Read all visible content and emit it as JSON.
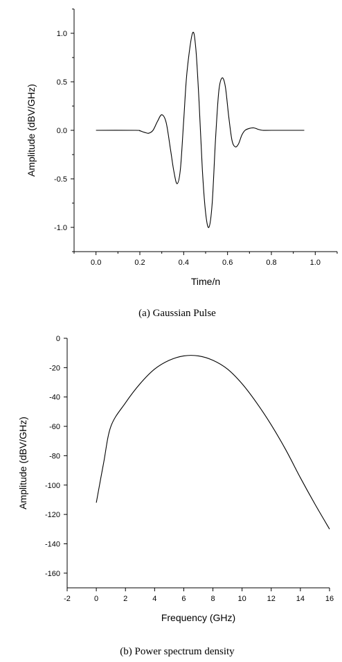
{
  "figures": [
    {
      "caption": "(a) Gaussian Pulse"
    },
    {
      "caption": "(b) Power spectrum density"
    }
  ],
  "chart_data": [
    {
      "type": "line",
      "xlabel": "Time/n",
      "ylabel": "Amplitude (dBV/GHz)",
      "xlim": [
        -0.1,
        1.1
      ],
      "ylim": [
        -1.25,
        1.25
      ],
      "xticks": [
        0.0,
        0.2,
        0.4,
        0.6,
        0.8,
        1.0
      ],
      "xtick_labels": [
        "0.0",
        "0.2",
        "0.4",
        "0.6",
        "0.8",
        "1.0"
      ],
      "yticks": [
        -1.0,
        -0.5,
        0.0,
        0.5,
        1.0
      ],
      "ytick_labels": [
        "-1.0",
        "-0.5",
        "0.0",
        "0.5",
        "1.0"
      ],
      "grid": false,
      "series": [
        {
          "x": [
            0.0,
            0.18,
            0.2,
            0.22,
            0.24,
            0.26,
            0.28,
            0.3,
            0.32,
            0.34,
            0.355,
            0.37,
            0.385,
            0.4,
            0.415,
            0.44,
            0.455,
            0.47,
            0.485,
            0.5,
            0.515,
            0.53,
            0.545,
            0.56,
            0.575,
            0.59,
            0.605,
            0.62,
            0.635,
            0.65,
            0.665,
            0.68,
            0.7,
            0.72,
            0.74,
            0.76,
            0.8,
            0.95
          ],
          "y": [
            0.0,
            0.0,
            -0.005,
            -0.02,
            -0.03,
            0.0,
            0.09,
            0.16,
            0.08,
            -0.2,
            -0.42,
            -0.55,
            -0.4,
            0.1,
            0.6,
            1.0,
            0.85,
            0.3,
            -0.4,
            -0.85,
            -1.0,
            -0.75,
            -0.1,
            0.4,
            0.54,
            0.45,
            0.15,
            -0.1,
            -0.17,
            -0.14,
            -0.05,
            0.0,
            0.02,
            0.025,
            0.01,
            0.0,
            0.0,
            0.0
          ]
        }
      ]
    },
    {
      "type": "line",
      "xlabel": "Frequency (GHz)",
      "ylabel": "Amplitude (dBV/GHz)",
      "xlim": [
        -2,
        16
      ],
      "ylim": [
        -170,
        0
      ],
      "xticks": [
        -2,
        0,
        2,
        4,
        6,
        8,
        10,
        12,
        14,
        16
      ],
      "xtick_labels": [
        "-2",
        "0",
        "2",
        "4",
        "6",
        "8",
        "10",
        "12",
        "14",
        "16"
      ],
      "yticks": [
        0,
        -20,
        -40,
        -60,
        -80,
        -100,
        -120,
        -140,
        -160
      ],
      "ytick_labels": [
        "0",
        "-20",
        "-40",
        "-60",
        "-80",
        "-100",
        "-120",
        "-140",
        "-160"
      ],
      "grid": false,
      "series": [
        {
          "x": [
            0,
            0.5,
            1,
            2,
            3,
            4,
            5,
            6,
            7,
            8,
            9,
            10,
            11,
            12,
            13,
            14,
            15,
            16
          ],
          "y": [
            -112,
            -85,
            -60,
            -44,
            -31,
            -21,
            -15,
            -12,
            -12,
            -15,
            -21,
            -31,
            -44,
            -59,
            -76,
            -95,
            -113,
            -130
          ]
        }
      ]
    }
  ]
}
